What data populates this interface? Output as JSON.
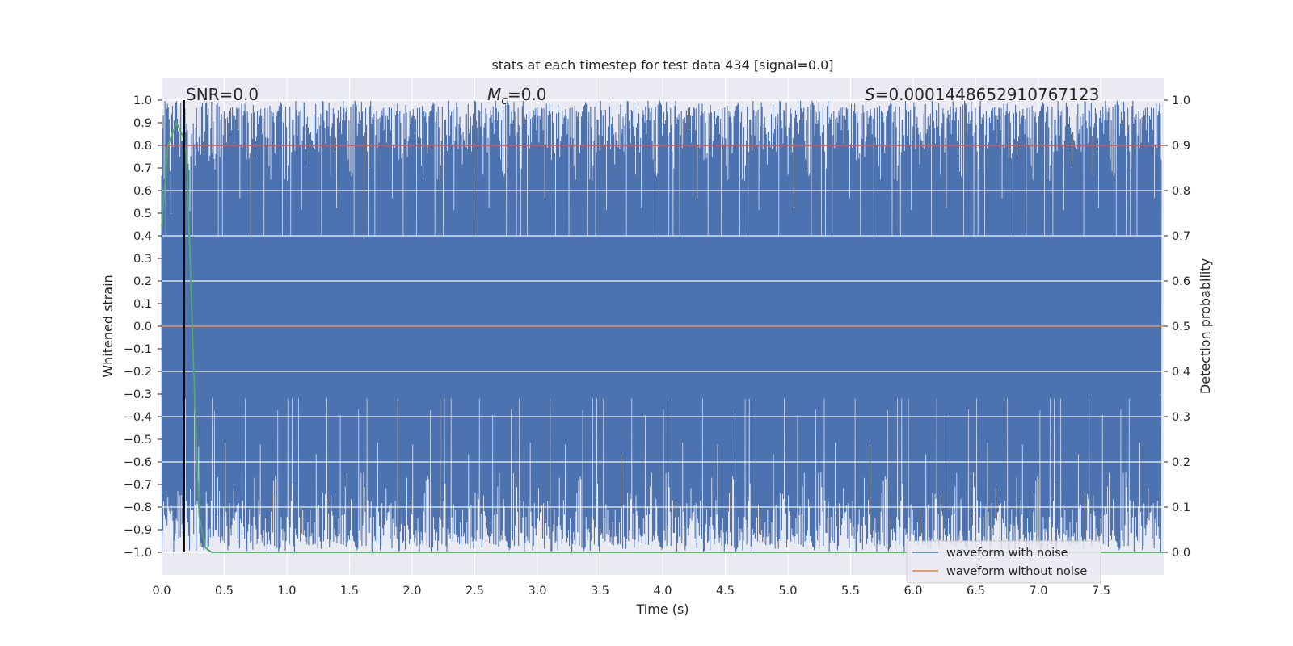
{
  "chart_data": {
    "type": "line",
    "title": "stats at each timestep for test data 434 [signal=0.0]",
    "xlabel": "Time (s)",
    "ylabel": "Whitened strain",
    "ylabel_right": "Detection probability",
    "xlim": [
      0.0,
      8.0
    ],
    "ylim": [
      -1.1,
      1.1
    ],
    "ylim_right": [
      -0.05,
      1.05
    ],
    "xticks": [
      "0.0",
      "0.5",
      "1.0",
      "1.5",
      "2.0",
      "2.5",
      "3.0",
      "3.5",
      "4.0",
      "4.5",
      "5.0",
      "5.5",
      "6.0",
      "6.5",
      "7.0",
      "7.5"
    ],
    "yticks": [
      "1.0",
      "0.9",
      "0.8",
      "0.7",
      "0.6",
      "0.5",
      "0.4",
      "0.3",
      "0.2",
      "0.1",
      "0.0",
      "−0.1",
      "−0.2",
      "−0.3",
      "−0.4",
      "−0.5",
      "−0.6",
      "−0.7",
      "−0.8",
      "−0.9",
      "−1.0"
    ],
    "yticks_right": [
      "1.0",
      "0.9",
      "0.8",
      "0.7",
      "0.6",
      "0.5",
      "0.4",
      "0.3",
      "0.2",
      "0.1",
      "0.0"
    ],
    "grid": true,
    "legend_position": "lower-right",
    "annotations": {
      "snr_label": "SNR=",
      "snr_value": "0.0",
      "mc_symbol": "M",
      "mc_subscript": "c",
      "mc_value": "=0.0",
      "s_symbol": "S",
      "s_value": "=0.0001448652910767123"
    },
    "series": [
      {
        "name": "waveform with noise",
        "color": "#4c72b0",
        "axis": "left",
        "description_values": "dense whitened noise filling approximately -1.0 to 1.0 across 0–8 s"
      },
      {
        "name": "waveform without noise",
        "color": "#dd8452",
        "axis": "left",
        "values_constant": 0.0
      },
      {
        "color": "#55a868",
        "axis": "right",
        "x": [
          0.0,
          0.05,
          0.12,
          0.17,
          0.2,
          0.25,
          0.3,
          0.35,
          0.4,
          8.0
        ],
        "y": [
          0.72,
          0.9,
          0.95,
          0.92,
          0.88,
          0.45,
          0.08,
          0.01,
          0.0,
          0.0
        ]
      },
      {
        "color": "#c44e52",
        "axis": "right",
        "values_constant": 0.9
      }
    ],
    "vline": {
      "x": 0.18,
      "color": "#000000"
    }
  }
}
